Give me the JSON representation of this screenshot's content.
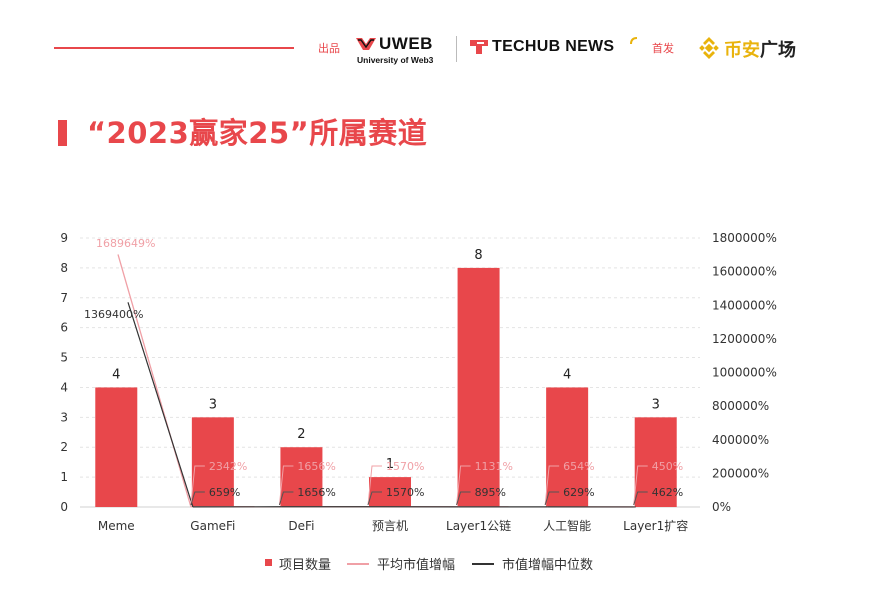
{
  "header": {
    "produced_label": "出品",
    "uweb_name": "UWEB",
    "uweb_sub": "University of Web3",
    "techub_name": "TECHUB NEWS",
    "first_release_label": "首发",
    "binance_prefix": "币安",
    "binance_suffix": "广场"
  },
  "title": "“2023赢家25”所属赛道",
  "colors": {
    "accent": "#e8474b",
    "avg_line": "#f0a0a6",
    "median_line": "#333333",
    "grid": "#e4e4e4",
    "binance_gold": "#e9b30c"
  },
  "chart_data": {
    "type": "bar",
    "categories": [
      "Meme",
      "GameFi",
      "DeFi",
      "预言机",
      "Layer1公链",
      "人工智能",
      "Layer1扩容"
    ],
    "series": [
      {
        "name": "项目数量",
        "type": "bar",
        "axis": "left",
        "values": [
          4,
          3,
          2,
          1,
          8,
          4,
          3
        ],
        "value_labels": [
          "4",
          "3",
          "2",
          "1",
          "8",
          "4",
          "3"
        ]
      },
      {
        "name": "平均市值增幅",
        "type": "line",
        "axis": "right",
        "values": [
          1689649,
          2342,
          1656,
          1570,
          1131,
          654,
          450
        ],
        "value_labels": [
          "1689649%",
          "2342%",
          "1656%",
          "1570%",
          "1131%",
          "654%",
          "450%"
        ]
      },
      {
        "name": "市值增幅中位数",
        "type": "line",
        "axis": "right",
        "values": [
          1369400,
          659,
          1656,
          1570,
          895,
          629,
          462
        ],
        "value_labels": [
          "1369400%",
          "659%",
          "1656%",
          "1570%",
          "895%",
          "629%",
          "462%"
        ]
      }
    ],
    "left_axis": {
      "min": 0,
      "max": 9,
      "ticks": [
        "0",
        "1",
        "2",
        "3",
        "4",
        "5",
        "6",
        "7",
        "8",
        "9"
      ]
    },
    "right_axis": {
      "min": 0,
      "max": 1800000,
      "ticks": [
        "0%",
        "200000%",
        "400000%",
        "800000%",
        "1000000%",
        "1200000%",
        "1400000%",
        "1600000%",
        "1800000%"
      ]
    },
    "grid": true,
    "legend_position": "bottom-center",
    "legend": [
      "项目数量",
      "平均市值增幅",
      "市值增幅中位数"
    ]
  }
}
